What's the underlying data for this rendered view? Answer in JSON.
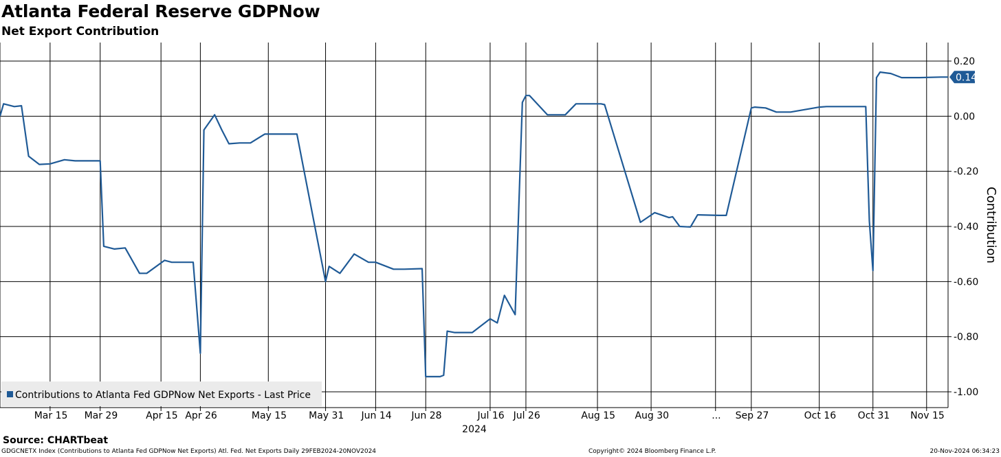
{
  "header": {
    "title": "Atlanta Federal Reserve GDPNow",
    "subtitle": "Net Export Contribution"
  },
  "footer": {
    "source": "Source: CHARTbeat",
    "description": "GDGCNETX Index (Contributions to Atlanta Fed GDPNow Net Exports) Atl. Fed. Net Exports  Daily 29FEB2024-20NOV2024",
    "copyright": "Copyright© 2024 Bloomberg Finance L.P.",
    "timestamp": "20-Nov-2024 06:34:23"
  },
  "colors": {
    "line": "#1f5a96",
    "grid": "#000000",
    "legend_bg": "#ebebeb",
    "last_label_bg": "#1f5a96"
  },
  "chart_data": {
    "type": "line",
    "xlabel": "",
    "ylabel": "Contribution",
    "ylim": [
      -1.0,
      0.2
    ],
    "xlim": [
      "2024-02-29",
      "2024-11-20"
    ],
    "grid": true,
    "legend_position": "bottom-left",
    "yticks": [
      0.2,
      0.0,
      -0.2,
      -0.4,
      -0.6,
      -0.8,
      -1.0
    ],
    "ytick_labels": [
      "0.20",
      "0.00",
      "-0.20",
      "-0.40",
      "-0.60",
      "-0.80",
      "-1.00"
    ],
    "xtick_labels": [
      {
        "date": "2024-03-15",
        "label": "Mar 15"
      },
      {
        "date": "2024-03-29",
        "label": "Mar 29"
      },
      {
        "date": "2024-04-15",
        "label": "Apr 15"
      },
      {
        "date": "2024-04-26",
        "label": "Apr 26"
      },
      {
        "date": "2024-05-15",
        "label": "May 15"
      },
      {
        "date": "2024-05-31",
        "label": "May 31"
      },
      {
        "date": "2024-06-14",
        "label": "Jun 14"
      },
      {
        "date": "2024-06-28",
        "label": "Jun 28"
      },
      {
        "date": "2024-07-16",
        "label": "Jul 16"
      },
      {
        "date": "2024-07-26",
        "label": "Jul 26"
      },
      {
        "date": "2024-08-15",
        "label": "Aug 15"
      },
      {
        "date": "2024-08-30",
        "label": "Aug 30"
      },
      {
        "date": "2024-09-17",
        "label": "..."
      },
      {
        "date": "2024-09-27",
        "label": "Sep 27"
      },
      {
        "date": "2024-10-16",
        "label": "Oct 16"
      },
      {
        "date": "2024-10-31",
        "label": "Oct 31"
      },
      {
        "date": "2024-11-15",
        "label": "Nov 15"
      }
    ],
    "year_label": "2024",
    "last_value_label": "0.14",
    "series": [
      {
        "name": "Contributions to Atlanta Fed GDPNow Net Exports - Last Price",
        "x": [
          "2024-02-29",
          "2024-03-01",
          "2024-03-04",
          "2024-03-06",
          "2024-03-08",
          "2024-03-11",
          "2024-03-14",
          "2024-03-18",
          "2024-03-21",
          "2024-03-26",
          "2024-03-28",
          "2024-03-29",
          "2024-04-01",
          "2024-04-04",
          "2024-04-08",
          "2024-04-10",
          "2024-04-15",
          "2024-04-17",
          "2024-04-19",
          "2024-04-23",
          "2024-04-25",
          "2024-04-26",
          "2024-04-29",
          "2024-05-01",
          "2024-05-03",
          "2024-05-06",
          "2024-05-09",
          "2024-05-13",
          "2024-05-16",
          "2024-05-22",
          "2024-05-30",
          "2024-05-31",
          "2024-06-03",
          "2024-06-07",
          "2024-06-11",
          "2024-06-13",
          "2024-06-18",
          "2024-06-21",
          "2024-06-26",
          "2024-06-27",
          "2024-07-01",
          "2024-07-02",
          "2024-07-03",
          "2024-07-05",
          "2024-07-10",
          "2024-07-15",
          "2024-07-17",
          "2024-07-19",
          "2024-07-22",
          "2024-07-24",
          "2024-07-25",
          "2024-07-26",
          "2024-07-31",
          "2024-08-05",
          "2024-08-08",
          "2024-08-15",
          "2024-08-16",
          "2024-08-26",
          "2024-08-30",
          "2024-09-03",
          "2024-09-04",
          "2024-09-06",
          "2024-09-09",
          "2024-09-11",
          "2024-09-17",
          "2024-09-19",
          "2024-09-26",
          "2024-09-27",
          "2024-09-30",
          "2024-10-03",
          "2024-10-07",
          "2024-10-15",
          "2024-10-17",
          "2024-10-28",
          "2024-10-29",
          "2024-10-30",
          "2024-10-31",
          "2024-11-01",
          "2024-11-04",
          "2024-11-07",
          "2024-11-12",
          "2024-11-18",
          "2024-11-20"
        ],
        "values": [
          0.0,
          0.045,
          0.035,
          0.038,
          -0.145,
          -0.175,
          -0.173,
          -0.158,
          -0.162,
          -0.162,
          -0.162,
          -0.472,
          -0.482,
          -0.478,
          -0.57,
          -0.57,
          -0.523,
          -0.53,
          -0.53,
          -0.53,
          -0.86,
          -0.05,
          0.005,
          -0.05,
          -0.1,
          -0.097,
          -0.097,
          -0.065,
          -0.065,
          -0.065,
          -0.6,
          -0.545,
          -0.57,
          -0.5,
          -0.53,
          -0.53,
          -0.555,
          -0.555,
          -0.553,
          -0.945,
          -0.945,
          -0.94,
          -0.78,
          -0.785,
          -0.785,
          -0.735,
          -0.75,
          -0.65,
          -0.72,
          0.05,
          0.075,
          0.075,
          0.005,
          0.005,
          0.045,
          0.045,
          0.042,
          -0.385,
          -0.35,
          -0.368,
          -0.365,
          -0.4,
          -0.402,
          -0.358,
          -0.36,
          -0.36,
          0.03,
          0.033,
          0.03,
          0.015,
          0.015,
          0.033,
          0.035,
          0.035,
          -0.38,
          -0.56,
          0.14,
          0.16,
          0.155,
          0.14,
          0.14,
          0.142,
          0.142
        ]
      }
    ]
  }
}
